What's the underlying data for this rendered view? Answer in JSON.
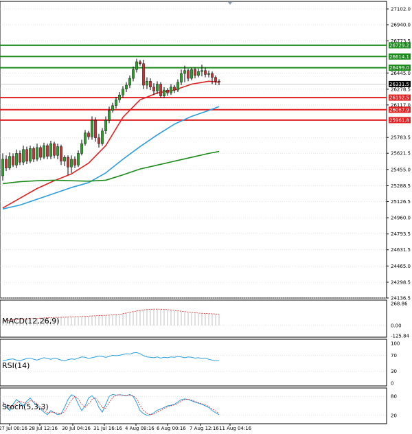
{
  "colors": {
    "bull": "#2a9d2a",
    "bear": "#c83232",
    "ma_red": "#e02020",
    "ma_blue": "#2a9de0",
    "ma_green": "#1a8a1a",
    "level_green": "#1a8a1a",
    "level_red": "#e02020",
    "current": "#000000",
    "grid": "#c8c8c8"
  },
  "chart_data": [
    {
      "type": "candlestick",
      "name": "price",
      "y_ticks": [
        "27102.0",
        "26940.0",
        "26773.5",
        "26445.0",
        "26278.5",
        "26117.0",
        "25783.5",
        "25621.5",
        "25455.0",
        "25288.5",
        "25126.5",
        "24960.0",
        "24793.5",
        "24631.5",
        "24465.0",
        "24298.5",
        "24136.5"
      ],
      "x_labels": [
        "27 Jul 00:16",
        "28 Jul 12:16",
        "30 Jul 04:16",
        "31 Jul 16:16",
        "4 Aug 08:16",
        "6 Aug 00:16",
        "7 Aug 12:16",
        "11 Aug 04:16"
      ],
      "ylim": [
        24136.5,
        27102.0
      ],
      "levels": [
        {
          "value": 26729.2,
          "label": "26729.2",
          "kind": "resistance"
        },
        {
          "value": 26614.1,
          "label": "26614.1",
          "kind": "resistance"
        },
        {
          "value": 26499.0,
          "label": "26499.0",
          "kind": "resistance"
        },
        {
          "value": 26192.5,
          "label": "26192.5",
          "kind": "support"
        },
        {
          "value": 26067.9,
          "label": "26067.9",
          "kind": "support"
        },
        {
          "value": 25961.8,
          "label": "25961.8",
          "kind": "support"
        }
      ],
      "current_price": {
        "value": 26331.5,
        "label": "26331.5"
      },
      "candles": [
        [
          25390,
          25560,
          25340,
          25620
        ],
        [
          25560,
          25470,
          25440,
          25600
        ],
        [
          25470,
          25590,
          25450,
          25630
        ],
        [
          25590,
          25500,
          25480,
          25620
        ],
        [
          25500,
          25620,
          25470,
          25660
        ],
        [
          25620,
          25530,
          25500,
          25650
        ],
        [
          25530,
          25660,
          25500,
          25700
        ],
        [
          25660,
          25540,
          25510,
          25690
        ],
        [
          25540,
          25670,
          25520,
          25700
        ],
        [
          25670,
          25560,
          25530,
          25690
        ],
        [
          25560,
          25680,
          25540,
          25720
        ],
        [
          25680,
          25580,
          25550,
          25700
        ],
        [
          25580,
          25700,
          25560,
          25730
        ],
        [
          25700,
          25590,
          25560,
          25720
        ],
        [
          25590,
          25720,
          25560,
          25750
        ],
        [
          25720,
          25600,
          25570,
          25740
        ],
        [
          25600,
          25690,
          25560,
          25720
        ],
        [
          25690,
          25540,
          25500,
          25710
        ],
        [
          25540,
          25580,
          25490,
          25600
        ],
        [
          25580,
          25480,
          25400,
          25600
        ],
        [
          25480,
          25560,
          25420,
          25600
        ],
        [
          25560,
          25500,
          25470,
          25590
        ],
        [
          25500,
          25620,
          25480,
          25650
        ],
        [
          25620,
          25720,
          25600,
          25760
        ],
        [
          25720,
          25830,
          25700,
          25860
        ],
        [
          25830,
          25790,
          25760,
          25850
        ],
        [
          25790,
          25960,
          25760,
          26000
        ],
        [
          25960,
          25780,
          25740,
          25990
        ],
        [
          25780,
          25720,
          25680,
          25820
        ],
        [
          25720,
          25850,
          25700,
          25880
        ],
        [
          25850,
          25960,
          25820,
          26000
        ],
        [
          25960,
          26060,
          25930,
          26100
        ],
        [
          26060,
          26110,
          26040,
          26140
        ],
        [
          26110,
          26170,
          26080,
          26200
        ],
        [
          26170,
          26220,
          26140,
          26250
        ],
        [
          26220,
          26280,
          26190,
          26310
        ],
        [
          26280,
          26320,
          26250,
          26350
        ],
        [
          26320,
          26390,
          26290,
          26420
        ],
        [
          26390,
          26480,
          26360,
          26510
        ],
        [
          26480,
          26560,
          26450,
          26590
        ],
        [
          26560,
          26540,
          26520,
          26580
        ],
        [
          26540,
          26320,
          26280,
          26580
        ],
        [
          26320,
          26360,
          26280,
          26400
        ],
        [
          26360,
          26300,
          26270,
          26390
        ],
        [
          26300,
          26260,
          26220,
          26340
        ],
        [
          26260,
          26330,
          26230,
          26360
        ],
        [
          26330,
          26210,
          26190,
          26350
        ],
        [
          26210,
          26270,
          26190,
          26300
        ],
        [
          26270,
          26240,
          26210,
          26290
        ],
        [
          26240,
          26300,
          26220,
          26330
        ],
        [
          26300,
          26270,
          26240,
          26320
        ],
        [
          26270,
          26350,
          26250,
          26380
        ],
        [
          26350,
          26440,
          26320,
          26480
        ],
        [
          26440,
          26470,
          26350,
          26520
        ],
        [
          26470,
          26390,
          26360,
          26490
        ],
        [
          26390,
          26480,
          26370,
          26500
        ],
        [
          26480,
          26420,
          26390,
          26500
        ],
        [
          26420,
          26460,
          26400,
          26490
        ],
        [
          26460,
          26470,
          26410,
          26530
        ],
        [
          26470,
          26430,
          26400,
          26500
        ],
        [
          26430,
          26440,
          26400,
          26470
        ],
        [
          26440,
          26400,
          26330,
          26460
        ],
        [
          26400,
          26360,
          26320,
          26420
        ],
        [
          26360,
          26350,
          26320,
          26380
        ]
      ],
      "ma": [
        {
          "name": "MA20",
          "color": "#e02020",
          "points": [
            [
              0,
              25060
            ],
            [
              5,
              25160
            ],
            [
              10,
              25260
            ],
            [
              15,
              25340
            ],
            [
              20,
              25410
            ],
            [
              25,
              25520
            ],
            [
              30,
              25700
            ],
            [
              35,
              25990
            ],
            [
              40,
              26170
            ],
            [
              45,
              26240
            ],
            [
              50,
              26270
            ],
            [
              55,
              26330
            ],
            [
              60,
              26360
            ],
            [
              63,
              26350
            ]
          ]
        },
        {
          "name": "MA50",
          "color": "#2a9de0",
          "points": [
            [
              0,
              25050
            ],
            [
              5,
              25090
            ],
            [
              10,
              25150
            ],
            [
              15,
              25210
            ],
            [
              20,
              25270
            ],
            [
              25,
              25320
            ],
            [
              30,
              25420
            ],
            [
              35,
              25560
            ],
            [
              40,
              25690
            ],
            [
              45,
              25810
            ],
            [
              50,
              25920
            ],
            [
              55,
              26000
            ],
            [
              60,
              26060
            ],
            [
              63,
              26100
            ]
          ]
        },
        {
          "name": "MA100",
          "color": "#1a8a1a",
          "points": [
            [
              0,
              25310
            ],
            [
              5,
              25330
            ],
            [
              10,
              25340
            ],
            [
              15,
              25345
            ],
            [
              20,
              25340
            ],
            [
              25,
              25335
            ],
            [
              30,
              25345
            ],
            [
              35,
              25400
            ],
            [
              40,
              25460
            ],
            [
              45,
              25500
            ],
            [
              50,
              25540
            ],
            [
              55,
              25580
            ],
            [
              60,
              25620
            ],
            [
              63,
              25640
            ]
          ]
        }
      ]
    },
    {
      "type": "bar",
      "name": "macd",
      "label": "MACD(12,26,9)",
      "y_ticks": [
        "268.86",
        "0.00",
        "-125.84"
      ],
      "ylim": [
        -125.84,
        268.86
      ],
      "histogram": [
        60,
        65,
        70,
        72,
        75,
        78,
        80,
        82,
        85,
        88,
        90,
        92,
        95,
        96,
        98,
        100,
        101,
        102,
        103,
        104,
        106,
        108,
        110,
        112,
        114,
        116,
        118,
        120,
        122,
        124,
        126,
        128,
        130,
        135,
        140,
        150,
        160,
        170,
        178,
        185,
        190,
        195,
        198,
        200,
        201,
        200,
        198,
        195,
        190,
        185,
        180,
        175,
        170,
        165,
        160,
        155,
        150,
        148,
        146,
        144,
        142,
        140,
        138,
        136
      ],
      "signal": [
        58,
        62,
        66,
        69,
        72,
        75,
        78,
        80,
        83,
        86,
        88,
        90,
        93,
        95,
        97,
        99,
        100,
        101,
        102,
        103,
        105,
        107,
        109,
        111,
        113,
        115,
        117,
        119,
        121,
        123,
        125,
        127,
        129,
        132,
        136,
        144,
        153,
        162,
        170,
        177,
        184,
        190,
        195,
        198,
        200,
        200,
        199,
        197,
        194,
        190,
        185,
        180,
        175,
        170,
        165,
        160,
        156,
        152,
        149,
        147,
        145,
        143,
        141,
        139
      ]
    },
    {
      "type": "line",
      "name": "rsi",
      "label": "RSI(14)",
      "y_ticks": [
        "100",
        "70",
        "30",
        "0"
      ],
      "ylim": [
        0,
        100
      ],
      "values": [
        56,
        58,
        60,
        61,
        58,
        57,
        59,
        62,
        63,
        60,
        58,
        61,
        64,
        62,
        60,
        63,
        61,
        58,
        56,
        59,
        61,
        60,
        63,
        66,
        65,
        62,
        64,
        66,
        68,
        67,
        65,
        67,
        70,
        69,
        70,
        72,
        74,
        73,
        76,
        77,
        74,
        69,
        66,
        65,
        64,
        66,
        63,
        65,
        64,
        66,
        65,
        67,
        66,
        64,
        66,
        65,
        63,
        64,
        62,
        63,
        60,
        58,
        57,
        56
      ]
    },
    {
      "type": "line",
      "name": "stochastic",
      "label": "Stoch(5,3,3)",
      "y_ticks": [
        "80",
        "20"
      ],
      "ylim": [
        0,
        100
      ],
      "k": [
        62,
        48,
        35,
        55,
        70,
        60,
        50,
        65,
        75,
        60,
        52,
        40,
        30,
        22,
        35,
        28,
        22,
        25,
        45,
        70,
        85,
        80,
        55,
        35,
        50,
        75,
        82,
        70,
        45,
        30,
        55,
        80,
        86,
        84,
        85,
        84,
        82,
        86,
        80,
        60,
        35,
        25,
        20,
        22,
        28,
        36,
        40,
        45,
        50,
        52,
        55,
        62,
        70,
        72,
        70,
        66,
        62,
        58,
        55,
        50,
        45,
        35,
        28,
        22
      ],
      "d": [
        60,
        52,
        45,
        48,
        58,
        65,
        60,
        58,
        66,
        65,
        56,
        46,
        36,
        28,
        30,
        30,
        26,
        24,
        32,
        50,
        68,
        80,
        72,
        55,
        45,
        56,
        70,
        76,
        62,
        45,
        42,
        60,
        76,
        84,
        85,
        84,
        83,
        84,
        82,
        72,
        52,
        36,
        26,
        22,
        24,
        30,
        36,
        42,
        47,
        50,
        53,
        58,
        65,
        70,
        71,
        68,
        64,
        60,
        57,
        53,
        48,
        40,
        33,
        26
      ]
    }
  ]
}
